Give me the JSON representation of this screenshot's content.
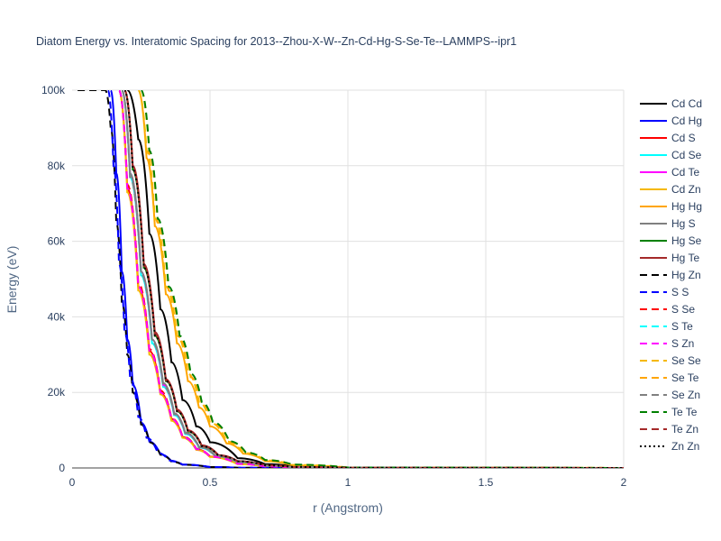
{
  "chart_data": {
    "type": "line",
    "title": "Diatom Energy vs. Interatomic Spacing for 2013--Zhou-X-W--Zn-Cd-Hg-S-Se-Te--LAMMPS--ipr1",
    "xlabel": "r (Angstrom)",
    "ylabel": "Energy (eV)",
    "xlim": [
      0,
      2
    ],
    "ylim": [
      0,
      100000
    ],
    "x_ticks": [
      0,
      0.5,
      1,
      1.5,
      2
    ],
    "x_tick_labels": [
      "0",
      "0.5",
      "1",
      "1.5",
      "2"
    ],
    "y_ticks": [
      0,
      20000,
      40000,
      60000,
      80000,
      100000
    ],
    "y_tick_labels": [
      "0",
      "20k",
      "40k",
      "60k",
      "80k",
      "100k"
    ],
    "grid": true,
    "legend_position": "right",
    "series": [
      {
        "name": "Cd Cd",
        "color": "#000000",
        "dash": "solid",
        "x": [
          0.2,
          0.24,
          0.28,
          0.32,
          0.36,
          0.4,
          0.45,
          0.5,
          0.6,
          0.7,
          0.8,
          1.0,
          2.0
        ],
        "y": [
          100000,
          87000,
          62000,
          42000,
          28000,
          18000,
          11000,
          6800,
          2600,
          1000,
          400,
          80,
          0
        ]
      },
      {
        "name": "Cd Hg",
        "color": "#0000ff",
        "dash": "solid",
        "x": [
          0.14,
          0.16,
          0.18,
          0.2,
          0.22,
          0.25,
          0.28,
          0.32,
          0.36,
          0.4,
          0.5,
          0.6,
          0.8,
          2.0
        ],
        "y": [
          100000,
          78000,
          52000,
          34000,
          22000,
          12000,
          7000,
          3600,
          1800,
          900,
          250,
          70,
          10,
          0
        ]
      },
      {
        "name": "Cd S",
        "color": "#ff0000",
        "dash": "solid",
        "x": [
          0.17,
          0.2,
          0.24,
          0.28,
          0.32,
          0.36,
          0.4,
          0.45,
          0.5,
          0.6,
          0.7,
          0.8,
          1.0,
          2.0
        ],
        "y": [
          100000,
          74000,
          48000,
          31000,
          20000,
          13000,
          8200,
          5000,
          3000,
          1100,
          400,
          150,
          30,
          0
        ]
      },
      {
        "name": "Cd Se",
        "color": "#00ffff",
        "dash": "solid",
        "x": [
          0.18,
          0.21,
          0.25,
          0.29,
          0.33,
          0.37,
          0.41,
          0.46,
          0.52,
          0.6,
          0.7,
          0.8,
          1.0,
          2.0
        ],
        "y": [
          100000,
          77000,
          51000,
          33000,
          21500,
          14000,
          9000,
          5400,
          3100,
          1500,
          550,
          200,
          40,
          0
        ]
      },
      {
        "name": "Cd Te",
        "color": "#ff00ff",
        "dash": "solid",
        "x": [
          0.18,
          0.21,
          0.25,
          0.29,
          0.33,
          0.37,
          0.41,
          0.46,
          0.52,
          0.6,
          0.7,
          0.8,
          1.0,
          2.0
        ],
        "y": [
          100000,
          78000,
          52000,
          34000,
          22000,
          14500,
          9300,
          5600,
          3200,
          1600,
          600,
          220,
          40,
          0
        ]
      },
      {
        "name": "Cd Zn",
        "color": "#f5b800",
        "dash": "solid",
        "x": [
          0.17,
          0.2,
          0.24,
          0.28,
          0.32,
          0.36,
          0.4,
          0.45,
          0.5,
          0.6,
          0.7,
          0.8,
          1.0,
          2.0
        ],
        "y": [
          100000,
          73000,
          47000,
          30000,
          19500,
          12500,
          8000,
          4800,
          2900,
          1000,
          380,
          140,
          25,
          0
        ]
      },
      {
        "name": "Hg Hg",
        "color": "#ffa500",
        "dash": "solid",
        "x": [
          0.24,
          0.27,
          0.3,
          0.34,
          0.38,
          0.42,
          0.46,
          0.5,
          0.56,
          0.62,
          0.7,
          0.8,
          1.0,
          2.0
        ],
        "y": [
          100000,
          82000,
          64000,
          46000,
          33000,
          23000,
          16000,
          11000,
          6500,
          3800,
          1800,
          700,
          100,
          0
        ]
      },
      {
        "name": "Hg S",
        "color": "#808080",
        "dash": "solid",
        "x": [
          0.18,
          0.21,
          0.25,
          0.29,
          0.33,
          0.37,
          0.41,
          0.46,
          0.52,
          0.6,
          0.7,
          0.8,
          1.0,
          2.0
        ],
        "y": [
          100000,
          78000,
          52000,
          34000,
          22500,
          14500,
          9400,
          5600,
          3200,
          1600,
          600,
          220,
          40,
          0
        ]
      },
      {
        "name": "Hg Se",
        "color": "#008000",
        "dash": "solid",
        "x": [
          0.19,
          0.22,
          0.26,
          0.3,
          0.34,
          0.38,
          0.42,
          0.47,
          0.53,
          0.6,
          0.7,
          0.8,
          1.0,
          2.0
        ],
        "y": [
          100000,
          79000,
          53000,
          35000,
          23000,
          15000,
          9700,
          5800,
          3300,
          1800,
          700,
          260,
          45,
          0
        ]
      },
      {
        "name": "Hg Te",
        "color": "#a52a2a",
        "dash": "solid",
        "x": [
          0.19,
          0.22,
          0.26,
          0.3,
          0.34,
          0.38,
          0.42,
          0.47,
          0.53,
          0.6,
          0.7,
          0.8,
          1.0,
          2.0
        ],
        "y": [
          100000,
          80000,
          54000,
          36000,
          23500,
          15500,
          10000,
          6000,
          3400,
          1800,
          700,
          260,
          45,
          0
        ]
      },
      {
        "name": "Hg Zn",
        "color": "#000000",
        "dash": "dash",
        "x": [
          0.02,
          0.12,
          0.14,
          0.16,
          0.18,
          0.2,
          0.22,
          0.25,
          0.28,
          0.32,
          0.36,
          0.4,
          0.5,
          0.6,
          0.8,
          2.0
        ],
        "y": [
          100000,
          100000,
          90000,
          65000,
          44000,
          30000,
          20000,
          11500,
          6800,
          3500,
          1700,
          850,
          230,
          60,
          10,
          0
        ]
      },
      {
        "name": "S S",
        "color": "#0000ff",
        "dash": "dash",
        "x": [
          0.13,
          0.15,
          0.17,
          0.19,
          0.21,
          0.24,
          0.27,
          0.31,
          0.35,
          0.4,
          0.5,
          0.6,
          0.8,
          2.0
        ],
        "y": [
          100000,
          80000,
          54000,
          36000,
          24000,
          13500,
          8000,
          4000,
          2000,
          900,
          250,
          70,
          10,
          0
        ]
      },
      {
        "name": "S Se",
        "color": "#ff0000",
        "dash": "dash",
        "x": [
          0.17,
          0.2,
          0.24,
          0.28,
          0.32,
          0.36,
          0.4,
          0.45,
          0.5,
          0.6,
          0.7,
          0.8,
          1.0,
          2.0
        ],
        "y": [
          100000,
          75000,
          49000,
          31500,
          20500,
          13200,
          8400,
          5100,
          3000,
          1100,
          410,
          150,
          30,
          0
        ]
      },
      {
        "name": "S Te",
        "color": "#00ffff",
        "dash": "dash",
        "x": [
          0.18,
          0.21,
          0.25,
          0.29,
          0.33,
          0.37,
          0.41,
          0.46,
          0.52,
          0.6,
          0.7,
          0.8,
          1.0,
          2.0
        ],
        "y": [
          100000,
          77000,
          51000,
          33000,
          21500,
          14000,
          9000,
          5400,
          3100,
          1500,
          560,
          200,
          40,
          0
        ]
      },
      {
        "name": "S Zn",
        "color": "#ff00ff",
        "dash": "dash",
        "x": [
          0.17,
          0.2,
          0.24,
          0.28,
          0.32,
          0.36,
          0.4,
          0.45,
          0.5,
          0.6,
          0.7,
          0.8,
          1.0,
          2.0
        ],
        "y": [
          100000,
          74000,
          48000,
          31000,
          20000,
          13000,
          8200,
          5000,
          3000,
          1100,
          400,
          150,
          30,
          0
        ]
      },
      {
        "name": "Se Se",
        "color": "#f5b800",
        "dash": "dash",
        "x": [
          0.24,
          0.27,
          0.3,
          0.34,
          0.38,
          0.42,
          0.46,
          0.5,
          0.56,
          0.62,
          0.7,
          0.8,
          1.0,
          2.0
        ],
        "y": [
          100000,
          84000,
          66000,
          48000,
          35000,
          25000,
          17500,
          12000,
          7000,
          4000,
          2000,
          800,
          120,
          0
        ]
      },
      {
        "name": "Se Te",
        "color": "#ffa500",
        "dash": "dash",
        "x": [
          0.25,
          0.28,
          0.31,
          0.35,
          0.39,
          0.43,
          0.47,
          0.51,
          0.57,
          0.63,
          0.7,
          0.8,
          1.0,
          2.0
        ],
        "y": [
          100000,
          83000,
          65000,
          47000,
          34000,
          24000,
          17000,
          11800,
          6900,
          4000,
          2100,
          850,
          130,
          0
        ]
      },
      {
        "name": "Se Zn",
        "color": "#808080",
        "dash": "dash",
        "x": [
          0.18,
          0.21,
          0.25,
          0.29,
          0.33,
          0.37,
          0.41,
          0.46,
          0.52,
          0.6,
          0.7,
          0.8,
          1.0,
          2.0
        ],
        "y": [
          100000,
          77000,
          51500,
          33500,
          21800,
          14200,
          9200,
          5500,
          3150,
          1550,
          580,
          210,
          40,
          0
        ]
      },
      {
        "name": "Te Te",
        "color": "#008000",
        "dash": "dash",
        "x": [
          0.25,
          0.28,
          0.31,
          0.35,
          0.39,
          0.43,
          0.47,
          0.51,
          0.57,
          0.63,
          0.7,
          0.8,
          1.0,
          2.0
        ],
        "y": [
          100000,
          84000,
          66000,
          48000,
          35000,
          25000,
          17500,
          12200,
          7100,
          4100,
          2100,
          880,
          130,
          0
        ]
      },
      {
        "name": "Te Zn",
        "color": "#a52a2a",
        "dash": "dash",
        "x": [
          0.19,
          0.22,
          0.26,
          0.3,
          0.34,
          0.38,
          0.42,
          0.47,
          0.53,
          0.6,
          0.7,
          0.8,
          1.0,
          2.0
        ],
        "y": [
          100000,
          79500,
          53500,
          35500,
          23200,
          15200,
          9800,
          5900,
          3350,
          1800,
          700,
          260,
          45,
          0
        ]
      },
      {
        "name": "Zn Zn",
        "color": "#000000",
        "dash": "dot",
        "x": [
          0.19,
          0.22,
          0.26,
          0.3,
          0.34,
          0.38,
          0.42,
          0.47,
          0.53,
          0.6,
          0.7,
          0.8,
          1.0,
          2.0
        ],
        "y": [
          100000,
          79000,
          53000,
          35000,
          23000,
          15000,
          9700,
          5800,
          3300,
          1800,
          700,
          260,
          45,
          0
        ]
      }
    ]
  }
}
